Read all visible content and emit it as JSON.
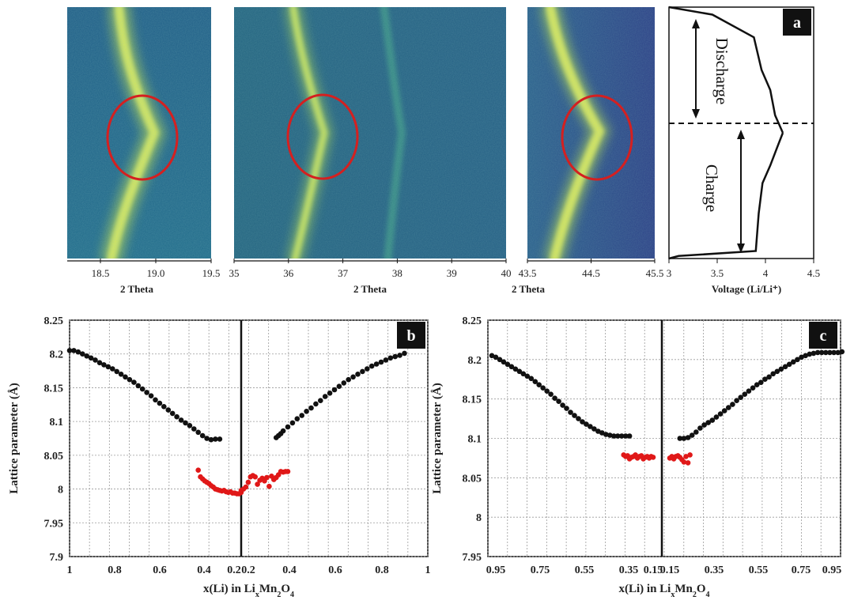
{
  "chart_data": [
    {
      "panel": "a",
      "type": "heatmap",
      "title": "",
      "panel_label": "a",
      "colormap": "viridis",
      "sub_panels": [
        {
          "xlabel": "2 Theta",
          "xlim": [
            18.2,
            19.5
          ],
          "xticks": [
            "18.5",
            "19.0",
            "19.5"
          ],
          "xtick_values": [
            18.5,
            19.0,
            19.5
          ]
        },
        {
          "xlabel": "2 Theta",
          "xlim": [
            35,
            40
          ],
          "xticks": [
            "35",
            "36",
            "37",
            "38",
            "39",
            "40"
          ],
          "xtick_values": [
            35,
            36,
            37,
            38,
            39,
            40
          ]
        },
        {
          "xlabel": "2 Theta",
          "xlim": [
            43.5,
            45.5
          ],
          "xticks": [
            "43.5",
            "44.5",
            "45.5"
          ],
          "xtick_values": [
            43.5,
            44.5,
            45.5
          ]
        }
      ],
      "highlighted_regions": [
        {
          "panel": 0,
          "center_x": 18.87,
          "center_y_fraction": 0.5
        },
        {
          "panel": 1,
          "center_x": 36.55,
          "center_y_fraction": 0.5
        },
        {
          "panel": 2,
          "center_x": 44.68,
          "center_y_fraction": 0.5
        }
      ],
      "circle_color": "#d42020"
    },
    {
      "panel": "a-voltage",
      "type": "line",
      "xlabel": "Voltage (Li/Li⁺)",
      "xlim": [
        3.0,
        4.5
      ],
      "xticks": [
        "3",
        "3.5",
        "4",
        "4.5"
      ],
      "xtick_values": [
        3.0,
        3.5,
        4.0,
        4.5
      ],
      "annotations": [
        "Discharge",
        "Charge"
      ],
      "series": [
        {
          "x": [
            4.18,
            4.1,
            4.05,
            3.96,
            3.88,
            3.45,
            3.0
          ],
          "y_fraction": [
            0.5,
            0.43,
            0.33,
            0.25,
            0.12,
            0.03,
            0.0
          ]
        },
        {
          "x": [
            4.18,
            4.12,
            4.05,
            3.97,
            3.93,
            3.9,
            3.1,
            3.0
          ],
          "y_fraction": [
            0.5,
            0.56,
            0.63,
            0.7,
            0.82,
            0.97,
            0.99,
            1.0
          ]
        }
      ]
    },
    {
      "panel": "b",
      "type": "scatter",
      "panel_label": "b",
      "xlabel": "x(Li) in Li",
      "xlabel_sub": "x",
      "xlabel_mid": "Mn",
      "xlabel_sub2": "2",
      "xlabel_end": "O",
      "xlabel_sub3": "4",
      "ylabel": "Lattice parameter (Å)",
      "ylim": [
        7.9,
        8.25
      ],
      "yticks": [
        "7.9",
        "7.95",
        "8",
        "8.05",
        "8.1",
        "8.15",
        "8.2",
        "8.25"
      ],
      "ytick_values": [
        7.9,
        7.95,
        8.0,
        8.05,
        8.1,
        8.15,
        8.2,
        8.25
      ],
      "xticks": [
        "1",
        "0.8",
        "0.6",
        "0.4",
        "0.2",
        "0.2",
        "0.4",
        "0.6",
        "0.8",
        "1"
      ],
      "discharge_black": {
        "x": [
          1.0,
          0.98,
          0.96,
          0.94,
          0.92,
          0.9,
          0.88,
          0.86,
          0.84,
          0.82,
          0.8,
          0.78,
          0.76,
          0.74,
          0.72,
          0.7,
          0.68,
          0.66,
          0.64,
          0.62,
          0.6,
          0.58,
          0.56,
          0.54,
          0.52,
          0.5,
          0.48,
          0.46,
          0.44,
          0.42,
          0.4,
          0.38,
          0.36,
          0.34,
          0.32,
          0.3
        ],
        "y": [
          8.205,
          8.205,
          8.203,
          8.2,
          8.197,
          8.194,
          8.191,
          8.187,
          8.184,
          8.181,
          8.178,
          8.174,
          8.17,
          8.166,
          8.162,
          8.158,
          8.153,
          8.148,
          8.143,
          8.138,
          8.132,
          8.127,
          8.122,
          8.117,
          8.112,
          8.107,
          8.102,
          8.098,
          8.094,
          8.089,
          8.084,
          8.079,
          8.075,
          8.073,
          8.074,
          8.074
        ]
      },
      "discharge_red": {
        "x": [
          0.4,
          0.39,
          0.38,
          0.37,
          0.36,
          0.35,
          0.34,
          0.33,
          0.32,
          0.31,
          0.3,
          0.29,
          0.28,
          0.27,
          0.26,
          0.25,
          0.24,
          0.23,
          0.22,
          0.21,
          0.2
        ],
        "y": [
          8.028,
          8.018,
          8.015,
          8.012,
          8.01,
          8.008,
          8.005,
          8.003,
          8.0,
          7.999,
          7.998,
          7.997,
          7.998,
          7.996,
          7.995,
          7.996,
          7.994,
          7.994,
          7.993,
          7.993,
          7.995
        ]
      },
      "charge_red": {
        "x": [
          0.2,
          0.21,
          0.22,
          0.23,
          0.24,
          0.25,
          0.26,
          0.27,
          0.28,
          0.29,
          0.3,
          0.31,
          0.32,
          0.33,
          0.34,
          0.35,
          0.36,
          0.37,
          0.38,
          0.39,
          0.4
        ],
        "y": [
          7.998,
          8.0,
          8.003,
          8.01,
          8.018,
          8.02,
          8.018,
          8.007,
          8.013,
          8.016,
          8.012,
          8.017,
          8.004,
          8.019,
          8.014,
          8.017,
          8.021,
          8.026,
          8.025,
          8.026,
          8.026
        ]
      },
      "charge_black": {
        "x": [
          0.35,
          0.36,
          0.37,
          0.38,
          0.4,
          0.42,
          0.44,
          0.46,
          0.48,
          0.5,
          0.52,
          0.54,
          0.56,
          0.58,
          0.6,
          0.62,
          0.64,
          0.66,
          0.68,
          0.7,
          0.72,
          0.74,
          0.76,
          0.78,
          0.8,
          0.82,
          0.84,
          0.86,
          0.88,
          0.9
        ],
        "y": [
          8.076,
          8.079,
          8.082,
          8.086,
          8.092,
          8.098,
          8.104,
          8.109,
          8.115,
          8.12,
          8.126,
          8.131,
          8.137,
          8.142,
          8.147,
          8.152,
          8.157,
          8.162,
          8.166,
          8.17,
          8.174,
          8.178,
          8.182,
          8.185,
          8.188,
          8.191,
          8.194,
          8.196,
          8.198,
          8.201
        ]
      },
      "grid": true
    },
    {
      "panel": "c",
      "type": "scatter",
      "panel_label": "c",
      "xlabel": "x(Li) in Li",
      "xlabel_sub": "x",
      "xlabel_mid": "Mn",
      "xlabel_sub2": "2",
      "xlabel_end": "O",
      "xlabel_sub3": "4",
      "ylabel": "Lattice parameter (Å)",
      "ylim": [
        7.95,
        8.25
      ],
      "yticks": [
        "7.95",
        "8",
        "8.05",
        "8.1",
        "8.15",
        "8.2",
        "8.25"
      ],
      "ytick_values": [
        7.95,
        8.0,
        8.05,
        8.1,
        8.15,
        8.2,
        8.25
      ],
      "xticks": [
        "0.95",
        "0.75",
        "0.55",
        "0.35",
        "0.15",
        "0.15",
        "0.35",
        "0.55",
        "0.75",
        "0.95"
      ],
      "discharge_black": {
        "x": [
          0.97,
          0.95,
          0.93,
          0.91,
          0.89,
          0.87,
          0.85,
          0.83,
          0.81,
          0.79,
          0.77,
          0.75,
          0.73,
          0.71,
          0.69,
          0.67,
          0.65,
          0.63,
          0.61,
          0.59,
          0.57,
          0.55,
          0.53,
          0.51,
          0.49,
          0.47,
          0.45,
          0.43,
          0.41,
          0.39,
          0.37,
          0.35,
          0.33,
          0.31,
          0.29,
          0.27
        ],
        "y": [
          8.205,
          8.203,
          8.2,
          8.197,
          8.194,
          8.191,
          8.188,
          8.185,
          8.182,
          8.179,
          8.176,
          8.172,
          8.168,
          8.164,
          8.16,
          8.156,
          8.151,
          8.147,
          8.142,
          8.138,
          8.133,
          8.129,
          8.125,
          8.121,
          8.118,
          8.115,
          8.112,
          8.109,
          8.107,
          8.105,
          8.104,
          8.103,
          8.103,
          8.103,
          8.103,
          8.103
        ]
      },
      "discharge_red": {
        "x": [
          0.3,
          0.29,
          0.28,
          0.27,
          0.26,
          0.25,
          0.24,
          0.23,
          0.22,
          0.21,
          0.2,
          0.19,
          0.18,
          0.17,
          0.16,
          0.15
        ],
        "y": [
          8.079,
          8.077,
          8.078,
          8.074,
          8.076,
          8.077,
          8.079,
          8.075,
          8.077,
          8.078,
          8.074,
          8.076,
          8.077,
          8.075,
          8.077,
          8.076
        ]
      },
      "charge_red": {
        "x": [
          0.15,
          0.16,
          0.17,
          0.18,
          0.19,
          0.2,
          0.21,
          0.22,
          0.23,
          0.24,
          0.25
        ],
        "y": [
          8.075,
          8.077,
          8.074,
          8.077,
          8.078,
          8.076,
          8.073,
          8.07,
          8.077,
          8.069,
          8.079
        ]
      },
      "charge_black": {
        "x": [
          0.2,
          0.22,
          0.24,
          0.26,
          0.28,
          0.3,
          0.32,
          0.34,
          0.36,
          0.38,
          0.4,
          0.42,
          0.44,
          0.46,
          0.48,
          0.5,
          0.52,
          0.54,
          0.56,
          0.58,
          0.6,
          0.62,
          0.64,
          0.66,
          0.68,
          0.7,
          0.72,
          0.74,
          0.76,
          0.78,
          0.8,
          0.82,
          0.84,
          0.86,
          0.88,
          0.9,
          0.92,
          0.94,
          0.96,
          0.98,
          1.0
        ],
        "y": [
          8.1,
          8.1,
          8.101,
          8.104,
          8.108,
          8.113,
          8.117,
          8.12,
          8.123,
          8.127,
          8.131,
          8.135,
          8.139,
          8.143,
          8.148,
          8.152,
          8.156,
          8.16,
          8.164,
          8.168,
          8.171,
          8.175,
          8.178,
          8.182,
          8.185,
          8.188,
          8.191,
          8.194,
          8.197,
          8.2,
          8.203,
          8.205,
          8.207,
          8.208,
          8.209,
          8.209,
          8.209,
          8.209,
          8.209,
          8.209,
          8.21
        ]
      },
      "grid": true
    }
  ]
}
